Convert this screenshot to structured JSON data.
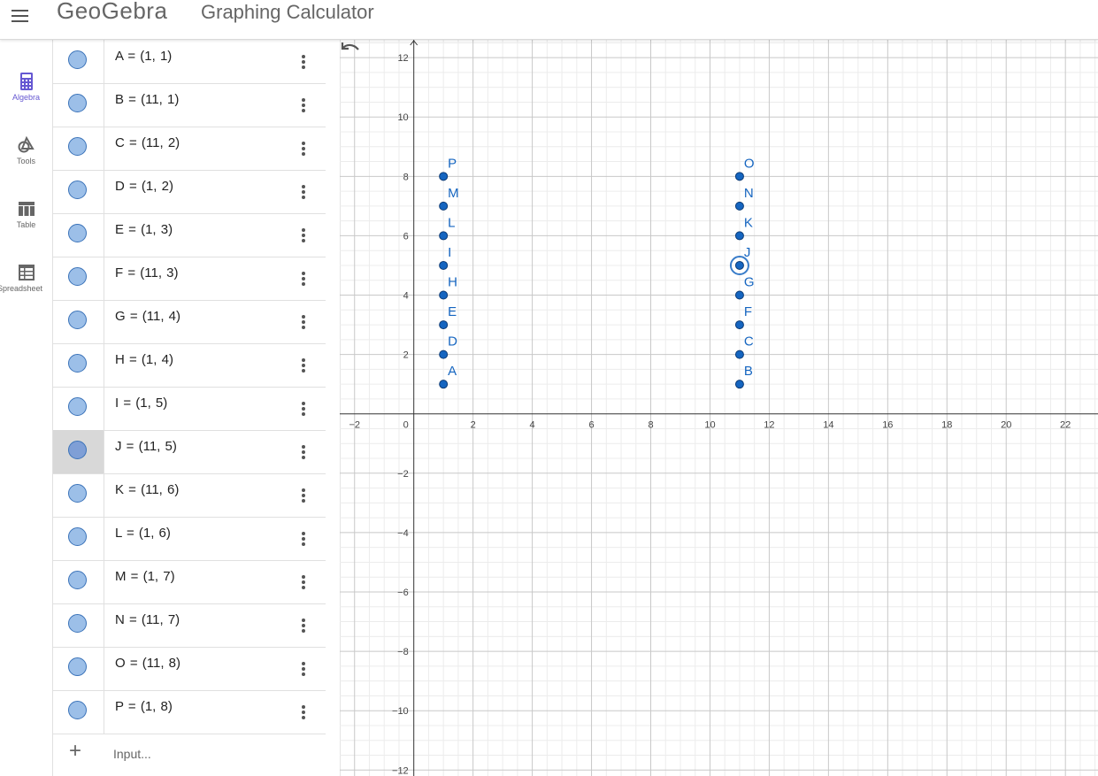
{
  "header": {
    "logo": "GeoGebra",
    "title": "Graphing Calculator"
  },
  "rail": [
    {
      "label": "Algebra",
      "icon": "calculator-icon",
      "active": true
    },
    {
      "label": "Tools",
      "icon": "tools-icon",
      "active": false
    },
    {
      "label": "Table",
      "icon": "table-icon",
      "active": false
    },
    {
      "label": "Spreadsheet",
      "icon": "spreadsheet-icon",
      "active": false
    }
  ],
  "algebra": {
    "rows": [
      {
        "name": "A",
        "expr": "A = (1, 1)",
        "x": 1,
        "y": 1
      },
      {
        "name": "B",
        "expr": "B = (11, 1)",
        "x": 11,
        "y": 1
      },
      {
        "name": "C",
        "expr": "C = (11, 2)",
        "x": 11,
        "y": 2
      },
      {
        "name": "D",
        "expr": "D = (1, 2)",
        "x": 1,
        "y": 2
      },
      {
        "name": "E",
        "expr": "E = (1, 3)",
        "x": 1,
        "y": 3
      },
      {
        "name": "F",
        "expr": "F = (11, 3)",
        "x": 11,
        "y": 3
      },
      {
        "name": "G",
        "expr": "G = (11, 4)",
        "x": 11,
        "y": 4
      },
      {
        "name": "H",
        "expr": "H = (1, 4)",
        "x": 1,
        "y": 4
      },
      {
        "name": "I",
        "expr": "I = (1, 5)",
        "x": 1,
        "y": 5
      },
      {
        "name": "J",
        "expr": "J = (11, 5)",
        "x": 11,
        "y": 5,
        "selected": true
      },
      {
        "name": "K",
        "expr": "K = (11, 6)",
        "x": 11,
        "y": 6
      },
      {
        "name": "L",
        "expr": "L = (1, 6)",
        "x": 1,
        "y": 6
      },
      {
        "name": "M",
        "expr": "M = (1, 7)",
        "x": 1,
        "y": 7
      },
      {
        "name": "N",
        "expr": "N = (11, 7)",
        "x": 11,
        "y": 7
      },
      {
        "name": "O",
        "expr": "O = (11, 8)",
        "x": 11,
        "y": 8
      },
      {
        "name": "P",
        "expr": "P = (1, 8)",
        "x": 1,
        "y": 8
      }
    ],
    "input_placeholder": "Input..."
  },
  "graph": {
    "x_ticks": [
      -2,
      0,
      2,
      4,
      6,
      8,
      10,
      12,
      14,
      16,
      18,
      20,
      22
    ],
    "y_ticks": [
      12,
      10,
      8,
      6,
      4,
      2,
      -2,
      -4,
      -6,
      -8,
      -10,
      -12
    ],
    "x_range": [
      -2.5,
      23.1
    ],
    "y_range": [
      -12.2,
      12.6
    ],
    "selected_point": "J"
  },
  "colors": {
    "point": "#1565c0",
    "point_stroke": "#0d3b75",
    "label": "#1565c0",
    "accent": "#6557d2",
    "marble": "#9cbfe8"
  }
}
